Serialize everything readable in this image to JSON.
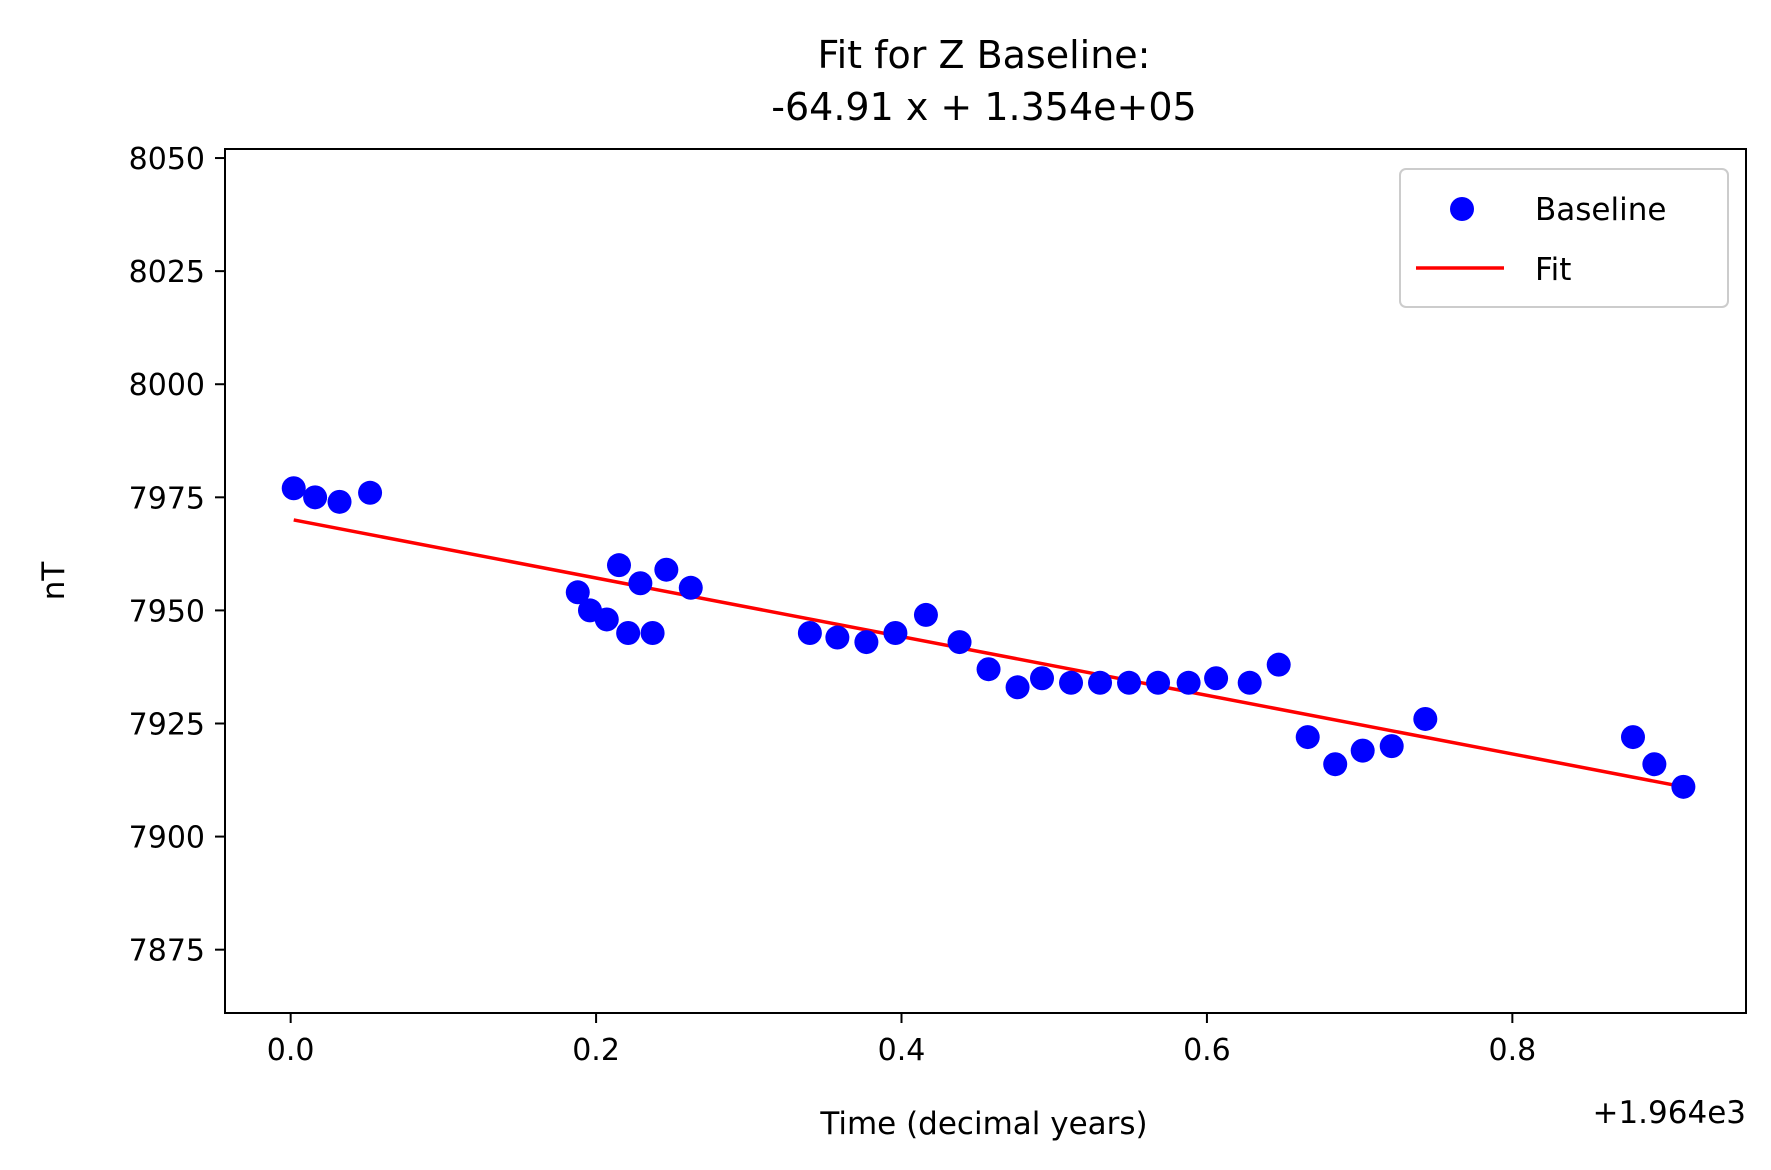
{
  "chart_data": {
    "type": "scatter",
    "title_line1": "Fit for Z Baseline:",
    "title_line2": "-64.91 x + 1.354e+05",
    "xlabel": "Time (decimal years)",
    "ylabel": "nT",
    "x_offset_label": "+1.964e3",
    "xlim": [
      -0.043,
      0.953
    ],
    "ylim": [
      7861,
      8052
    ],
    "xticks": [
      0.0,
      0.2,
      0.4,
      0.6,
      0.8
    ],
    "xtick_labels": [
      "0.0",
      "0.2",
      "0.4",
      "0.6",
      "0.8"
    ],
    "yticks": [
      7875,
      7900,
      7925,
      7950,
      7975,
      8000,
      8025,
      8050
    ],
    "ytick_labels": [
      "7875",
      "7900",
      "7925",
      "7950",
      "7975",
      "8000",
      "8025",
      "8050"
    ],
    "grid": false,
    "legend_position": "top-right",
    "series": [
      {
        "name": "Baseline",
        "kind": "scatter",
        "color": "#0000ff",
        "points": [
          [
            0.002,
            7977
          ],
          [
            0.016,
            7975
          ],
          [
            0.032,
            7974
          ],
          [
            0.052,
            7976
          ],
          [
            0.188,
            7954
          ],
          [
            0.196,
            7950
          ],
          [
            0.207,
            7948
          ],
          [
            0.215,
            7960
          ],
          [
            0.221,
            7945
          ],
          [
            0.229,
            7956
          ],
          [
            0.237,
            7945
          ],
          [
            0.246,
            7959
          ],
          [
            0.262,
            7955
          ],
          [
            0.34,
            7945
          ],
          [
            0.358,
            7944
          ],
          [
            0.377,
            7943
          ],
          [
            0.396,
            7945
          ],
          [
            0.416,
            7949
          ],
          [
            0.438,
            7943
          ],
          [
            0.457,
            7937
          ],
          [
            0.476,
            7933
          ],
          [
            0.492,
            7935
          ],
          [
            0.511,
            7934
          ],
          [
            0.53,
            7934
          ],
          [
            0.549,
            7934
          ],
          [
            0.568,
            7934
          ],
          [
            0.588,
            7934
          ],
          [
            0.606,
            7935
          ],
          [
            0.628,
            7934
          ],
          [
            0.647,
            7938
          ],
          [
            0.666,
            7922
          ],
          [
            0.684,
            7916
          ],
          [
            0.702,
            7919
          ],
          [
            0.721,
            7920
          ],
          [
            0.743,
            7926
          ],
          [
            0.879,
            7922
          ],
          [
            0.893,
            7916
          ],
          [
            0.912,
            7911
          ]
        ]
      },
      {
        "name": "Fit",
        "kind": "line",
        "color": "#ff0000",
        "points": [
          [
            0.002,
            7970
          ],
          [
            0.912,
            7911
          ]
        ]
      }
    ]
  }
}
